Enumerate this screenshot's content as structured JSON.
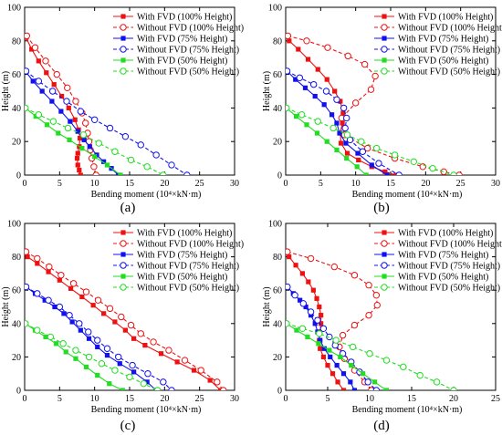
{
  "colors": {
    "red": "#ee1111",
    "blue": "#1111ee",
    "green": "#22dd22"
  },
  "legend": [
    {
      "label": "With FVD (100% Height)",
      "color": "red",
      "dashed": false,
      "marker": "square"
    },
    {
      "label": "Without FVD (100% Height)",
      "color": "red",
      "dashed": true,
      "marker": "circle"
    },
    {
      "label": "With FVD (75% Height)",
      "color": "blue",
      "dashed": false,
      "marker": "square"
    },
    {
      "label": "Without FVD (75% Height)",
      "color": "blue",
      "dashed": true,
      "marker": "circle"
    },
    {
      "label": "With FVD (50% Height)",
      "color": "green",
      "dashed": false,
      "marker": "square"
    },
    {
      "label": "Without FVD (50% Height)",
      "color": "green",
      "dashed": true,
      "marker": "circle"
    }
  ],
  "chart_data": [
    {
      "type": "line",
      "panel_label": "(a)",
      "xlabel": "Bending moment (10⁴×kN·m)",
      "ylabel": "Height (m)",
      "xlim": [
        0,
        30
      ],
      "ylim": [
        0,
        100
      ],
      "xticks": [
        0,
        5,
        10,
        15,
        20,
        25,
        30
      ],
      "yticks": [
        0,
        20,
        40,
        60,
        80,
        100
      ],
      "legend_position": "top-right",
      "series": [
        {
          "name": "With FVD (100% Height)",
          "color": "red",
          "dashed": false,
          "marker": "square",
          "x": [
            0.2,
            1.0,
            2.0,
            3.1,
            4.2,
            5.3,
            6.3,
            7.2,
            7.7,
            7.9,
            7.8,
            7.6,
            7.5,
            7.6,
            7.8,
            8.0
          ],
          "y": [
            82,
            75,
            68,
            61,
            54,
            47,
            40,
            33,
            27,
            22,
            17,
            13,
            10,
            6,
            3,
            0
          ]
        },
        {
          "name": "Without FVD (100% Height)",
          "color": "red",
          "dashed": true,
          "marker": "circle",
          "x": [
            0.3,
            1.5,
            3.0,
            4.6,
            6.1,
            7.3,
            8.2,
            8.7,
            9.0,
            9.2,
            9.4,
            9.6,
            9.9,
            10.2
          ],
          "y": [
            83,
            76,
            68,
            60,
            52,
            44,
            37,
            31,
            25,
            20,
            15,
            10,
            5,
            0
          ]
        },
        {
          "name": "With FVD (75% Height)",
          "color": "blue",
          "dashed": false,
          "marker": "square",
          "x": [
            0.1,
            1.2,
            2.5,
            3.9,
            5.2,
            6.5,
            7.6,
            8.5,
            9.3,
            10.3,
            11.3,
            12.4,
            13.4
          ],
          "y": [
            62,
            56,
            50,
            44,
            38,
            32,
            26,
            21,
            17,
            12,
            8,
            4,
            0
          ]
        },
        {
          "name": "Without FVD (75% Height)",
          "color": "blue",
          "dashed": true,
          "marker": "circle",
          "x": [
            0.2,
            2.0,
            4.0,
            6.0,
            8.0,
            10.0,
            12.2,
            14.4,
            16.6,
            18.8,
            21.0,
            23.2
          ],
          "y": [
            62,
            56,
            50,
            44,
            38,
            33,
            28,
            23,
            18,
            12,
            6,
            0
          ]
        },
        {
          "name": "With FVD (50% Height)",
          "color": "green",
          "dashed": false,
          "marker": "square",
          "x": [
            0.1,
            1.6,
            3.2,
            4.8,
            6.4,
            8.2,
            10.0,
            11.8,
            13.7
          ],
          "y": [
            40,
            35,
            30,
            25,
            21,
            16,
            11,
            6,
            0
          ]
        },
        {
          "name": "Without FVD (50% Height)",
          "color": "green",
          "dashed": true,
          "marker": "circle",
          "x": [
            0.1,
            2.0,
            4.1,
            6.2,
            8.4,
            10.6,
            12.9,
            15.2,
            17.5,
            19.8
          ],
          "y": [
            40,
            36,
            32,
            28,
            24,
            19,
            14,
            9,
            5,
            0
          ]
        }
      ]
    },
    {
      "type": "line",
      "panel_label": "(b)",
      "xlabel": "Bending moment (10⁴×kN·m)",
      "ylabel": "Height (m)",
      "xlim": [
        0,
        30
      ],
      "ylim": [
        0,
        100
      ],
      "xticks": [
        0,
        5,
        10,
        15,
        20,
        25,
        30
      ],
      "yticks": [
        0,
        20,
        40,
        60,
        80,
        100
      ],
      "legend_position": "top-right",
      "series": [
        {
          "name": "With FVD (100% Height)",
          "color": "red",
          "dashed": false,
          "marker": "square",
          "x": [
            0.5,
            1.8,
            3.2,
            4.6,
            5.9,
            7.0,
            7.8,
            8.2,
            8.1,
            7.8,
            7.9,
            8.8,
            10.4,
            12.3,
            14.2,
            15.8
          ],
          "y": [
            80,
            75,
            69,
            63,
            57,
            50,
            44,
            37,
            31,
            25,
            19,
            13,
            9,
            5,
            2,
            0
          ]
        },
        {
          "name": "Without FVD (100% Height)",
          "color": "red",
          "dashed": true,
          "marker": "circle",
          "x": [
            0.3,
            3.0,
            6.0,
            8.9,
            11.3,
            12.8,
            12.2,
            10.0,
            8.0,
            8.4,
            11.7,
            15.6,
            19.6,
            22.6,
            24.8
          ],
          "y": [
            83,
            80,
            76,
            71,
            66,
            59,
            51,
            43,
            34,
            24,
            16,
            10,
            5,
            2,
            0
          ]
        },
        {
          "name": "With FVD (75% Height)",
          "color": "blue",
          "dashed": false,
          "marker": "square",
          "x": [
            0.2,
            1.4,
            2.8,
            4.2,
            5.5,
            6.6,
            7.3,
            7.7,
            8.6,
            10.3,
            12.3,
            14.5
          ],
          "y": [
            62,
            57,
            52,
            47,
            42,
            36,
            31,
            25,
            19,
            13,
            6,
            0
          ]
        },
        {
          "name": "Without FVD (75% Height)",
          "color": "blue",
          "dashed": true,
          "marker": "circle",
          "x": [
            0.2,
            2.0,
            4.0,
            5.8,
            7.3,
            8.3,
            8.7,
            8.5,
            9.2,
            11.0,
            13.3,
            16.2
          ],
          "y": [
            62,
            58,
            54,
            50,
            45,
            40,
            34,
            28,
            21,
            14,
            7,
            0
          ]
        },
        {
          "name": "With FVD (50% Height)",
          "color": "green",
          "dashed": false,
          "marker": "square",
          "x": [
            0.1,
            1.5,
            3.0,
            4.5,
            5.9,
            7.3,
            8.7,
            10.2,
            11.5
          ],
          "y": [
            40,
            35,
            30,
            25,
            20,
            15,
            10,
            5,
            0
          ]
        },
        {
          "name": "Without FVD (50% Height)",
          "color": "green",
          "dashed": true,
          "marker": "circle",
          "x": [
            0.1,
            2.3,
            4.6,
            6.8,
            8.8,
            10.8,
            13.0,
            15.6,
            18.3,
            21.0,
            24.0
          ],
          "y": [
            40,
            36,
            32,
            28,
            24,
            20,
            16,
            12,
            8,
            4,
            0
          ]
        }
      ]
    },
    {
      "type": "line",
      "panel_label": "(c)",
      "xlabel": "Bending moment (10⁴×kN·m)",
      "ylabel": "Height (m)",
      "xlim": [
        0,
        30
      ],
      "ylim": [
        0,
        100
      ],
      "xticks": [
        0,
        5,
        10,
        15,
        20,
        25,
        30
      ],
      "yticks": [
        0,
        20,
        40,
        60,
        80,
        100
      ],
      "legend_position": "top-right",
      "series": [
        {
          "name": "With FVD (100% Height)",
          "color": "red",
          "dashed": false,
          "marker": "square",
          "x": [
            0.4,
            1.8,
            3.4,
            5.0,
            6.6,
            8.2,
            9.8,
            11.3,
            12.9,
            14.4,
            15.6,
            17.2,
            19.5,
            21.8,
            24.2,
            26.5,
            28.0
          ],
          "y": [
            80,
            76,
            71,
            66,
            61,
            56,
            51,
            46,
            41,
            36,
            31,
            27,
            22,
            17,
            12,
            6,
            0
          ]
        },
        {
          "name": "Without FVD (100% Height)",
          "color": "red",
          "dashed": true,
          "marker": "circle",
          "x": [
            0.2,
            1.8,
            3.5,
            5.2,
            7.0,
            8.8,
            10.5,
            12.2,
            13.8,
            15.2,
            16.6,
            18.4,
            20.6,
            22.9,
            25.2,
            27.5,
            28.4
          ],
          "y": [
            83,
            79,
            74,
            69,
            64,
            59,
            54,
            49,
            44,
            39,
            34,
            29,
            24,
            18,
            12,
            5,
            0
          ]
        },
        {
          "name": "With FVD (75% Height)",
          "color": "blue",
          "dashed": false,
          "marker": "square",
          "x": [
            0.2,
            1.5,
            2.9,
            4.3,
            5.6,
            6.8,
            8.0,
            9.2,
            10.4,
            11.8,
            13.6,
            15.6,
            17.5,
            18.8
          ],
          "y": [
            62,
            58,
            54,
            50,
            46,
            41,
            36,
            31,
            26,
            21,
            16,
            11,
            5,
            0
          ]
        },
        {
          "name": "Without FVD (75% Height)",
          "color": "blue",
          "dashed": true,
          "marker": "circle",
          "x": [
            0.2,
            1.8,
            3.4,
            5.0,
            6.4,
            7.8,
            9.1,
            10.4,
            11.8,
            13.4,
            15.4,
            17.6,
            19.8,
            21.0
          ],
          "y": [
            62,
            58,
            54,
            50,
            45,
            40,
            35,
            30,
            25,
            20,
            15,
            10,
            5,
            0
          ]
        },
        {
          "name": "With FVD (50% Height)",
          "color": "green",
          "dashed": false,
          "marker": "square",
          "x": [
            0.1,
            1.5,
            3.0,
            4.5,
            5.9,
            7.3,
            8.8,
            10.4,
            12.1,
            14.0
          ],
          "y": [
            40,
            36,
            32,
            28,
            23,
            19,
            14,
            9,
            4,
            0
          ]
        },
        {
          "name": "Without FVD (50% Height)",
          "color": "green",
          "dashed": true,
          "marker": "circle",
          "x": [
            0.1,
            1.8,
            3.7,
            5.5,
            7.3,
            9.2,
            11.0,
            12.9,
            15.0,
            17.0,
            19.0
          ],
          "y": [
            40,
            36,
            32,
            28,
            24,
            20,
            16,
            12,
            8,
            4,
            0
          ]
        }
      ]
    },
    {
      "type": "line",
      "panel_label": "(d)",
      "xlabel": "Bending moment (10⁴×kN·m)",
      "ylabel": "Height (m)",
      "xlim": [
        0,
        25
      ],
      "ylim": [
        0,
        100
      ],
      "xticks": [
        0,
        5,
        10,
        15,
        20,
        25
      ],
      "yticks": [
        0,
        20,
        40,
        60,
        80,
        100
      ],
      "legend_position": "top-right",
      "series": [
        {
          "name": "With FVD (100% Height)",
          "color": "red",
          "dashed": false,
          "marker": "square",
          "x": [
            0.4,
            1.2,
            2.0,
            2.7,
            3.3,
            3.7,
            4.0,
            4.2,
            4.2,
            4.1,
            4.0,
            4.1,
            4.5,
            5.0,
            5.6,
            6.2,
            6.9
          ],
          "y": [
            80,
            75,
            70,
            65,
            60,
            55,
            50,
            45,
            40,
            35,
            30,
            25,
            20,
            15,
            10,
            5,
            0
          ]
        },
        {
          "name": "Without FVD (100% Height)",
          "color": "red",
          "dashed": true,
          "marker": "circle",
          "x": [
            0.2,
            3.0,
            5.8,
            8.2,
            9.9,
            10.8,
            10.9,
            9.9,
            8.2,
            6.8,
            6.4,
            7.0,
            8.2,
            9.4,
            10.2
          ],
          "y": [
            83,
            79,
            74,
            69,
            63,
            57,
            51,
            45,
            39,
            33,
            26,
            19,
            12,
            5,
            0
          ]
        },
        {
          "name": "With FVD (75% Height)",
          "color": "blue",
          "dashed": false,
          "marker": "square",
          "x": [
            0.2,
            0.9,
            1.7,
            2.4,
            3.0,
            3.5,
            3.8,
            4.1,
            4.6,
            5.3,
            6.1,
            6.9,
            7.7,
            8.2
          ],
          "y": [
            62,
            58,
            54,
            50,
            45,
            40,
            35,
            30,
            25,
            20,
            15,
            10,
            5,
            0
          ]
        },
        {
          "name": "Without FVD (75% Height)",
          "color": "blue",
          "dashed": true,
          "marker": "circle",
          "x": [
            0.2,
            1.1,
            2.1,
            3.0,
            3.8,
            4.5,
            5.2,
            5.9,
            6.8,
            7.8,
            8.8,
            9.8,
            10.8
          ],
          "y": [
            62,
            57,
            52,
            47,
            42,
            37,
            32,
            27,
            22,
            17,
            11,
            5,
            0
          ]
        },
        {
          "name": "With FVD (50% Height)",
          "color": "green",
          "dashed": false,
          "marker": "square",
          "x": [
            0.1,
            1.3,
            2.6,
            3.9,
            5.2,
            6.5,
            7.8,
            9.2,
            10.6,
            12.0
          ],
          "y": [
            40,
            36,
            32,
            28,
            24,
            20,
            15,
            10,
            5,
            0
          ]
        },
        {
          "name": "Without FVD (50% Height)",
          "color": "green",
          "dashed": true,
          "marker": "circle",
          "x": [
            0.1,
            2.0,
            4.0,
            6.0,
            8.0,
            10.0,
            12.0,
            14.0,
            16.0,
            18.0,
            20.0
          ],
          "y": [
            40,
            37,
            34,
            30,
            26,
            22,
            18,
            14,
            9,
            5,
            0
          ]
        }
      ]
    }
  ]
}
